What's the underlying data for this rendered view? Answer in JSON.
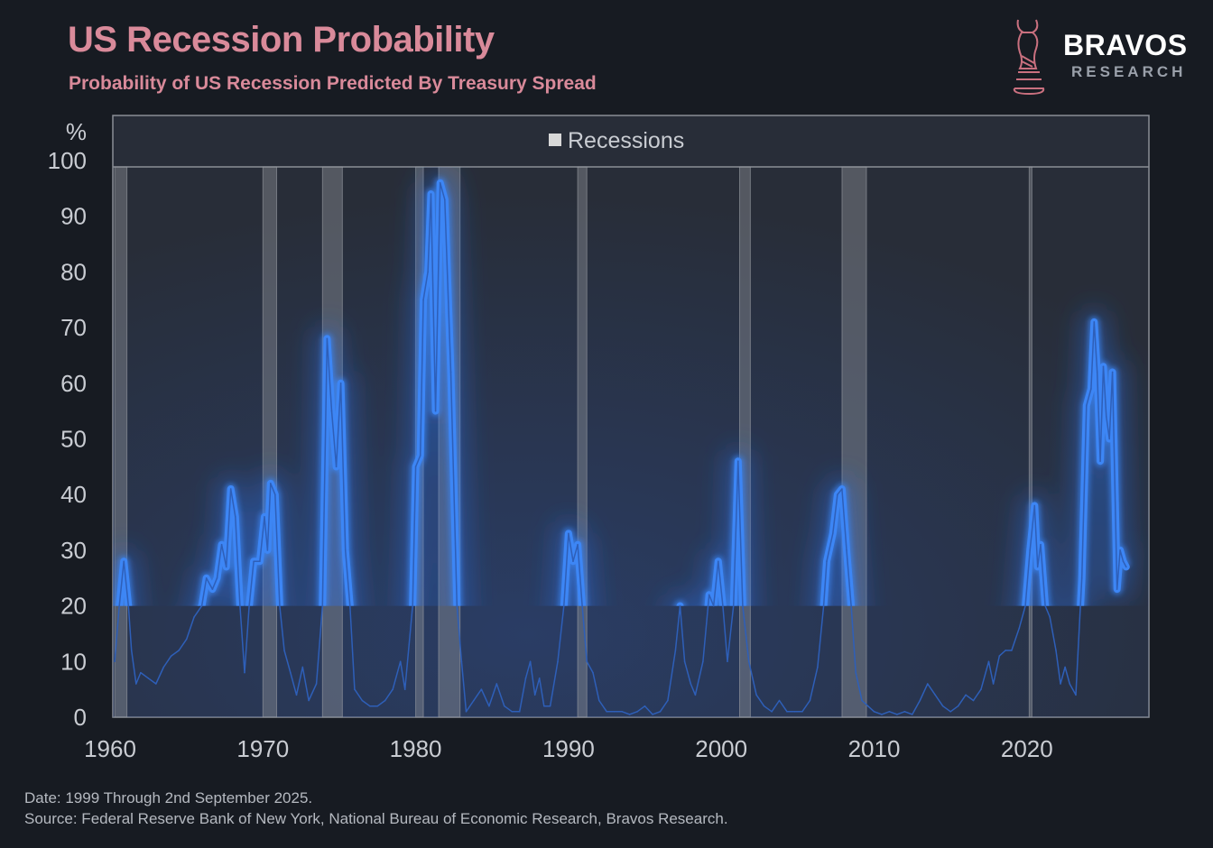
{
  "header": {
    "title": "US Recession Probability",
    "subtitle": "Probability of US Recession Predicted By Treasury Spread"
  },
  "logo": {
    "name": "BRAVOS",
    "sub": "RESEARCH",
    "icon": "bull-chess-knight-icon"
  },
  "footer": {
    "date_note": "Date: 1999 Through 2nd September 2025.",
    "source_note": "Source: Federal Reserve Bank of New York, National Bureau of Economic Research, Bravos Research."
  },
  "colors": {
    "title": "#d98a9a",
    "line": "#3d86f5",
    "background": "#171b22",
    "plot_bg": "#282d38",
    "recession_band": "#8a8d94"
  },
  "chart_data": {
    "type": "line",
    "title": "US Recession Probability",
    "subtitle": "Probability of US Recession Predicted By Treasury Spread",
    "ylabel": "%",
    "xlabel": "",
    "ylim": [
      0,
      100
    ],
    "xlim": [
      1960,
      2027.5
    ],
    "yticks": [
      0,
      10,
      20,
      30,
      40,
      50,
      60,
      70,
      80,
      90,
      100
    ],
    "xticks": [
      1960,
      1970,
      1980,
      1990,
      2000,
      2010,
      2020
    ],
    "grid": false,
    "legend": {
      "position": "top",
      "entries": [
        "Recessions"
      ]
    },
    "highlight_threshold": 20,
    "recessions": [
      [
        1960.3,
        1961.1
      ],
      [
        1970.0,
        1970.9
      ],
      [
        1973.9,
        1975.2
      ],
      [
        1980.0,
        1980.5
      ],
      [
        1981.5,
        1982.9
      ],
      [
        1990.6,
        1991.2
      ],
      [
        2001.2,
        2001.9
      ],
      [
        2007.9,
        2009.5
      ],
      [
        2020.15,
        2020.3
      ]
    ],
    "series": [
      {
        "x": [
          1960.3,
          1960.6,
          1960.9,
          1961.2,
          1961.4,
          1961.7,
          1962.0,
          1962.5,
          1963.0,
          1963.5,
          1964.0,
          1964.5,
          1965.0,
          1965.5,
          1966.0,
          1966.3,
          1966.7,
          1967.0,
          1967.3,
          1967.6,
          1967.9,
          1968.2,
          1968.5,
          1968.8,
          1969.1,
          1969.4,
          1969.8,
          1970.1,
          1970.3,
          1970.5,
          1970.8,
          1971.1,
          1971.4,
          1971.8,
          1972.2,
          1972.6,
          1973.0,
          1973.5,
          1973.9,
          1974.2,
          1974.5,
          1974.8,
          1975.1,
          1975.4,
          1975.7,
          1976.0,
          1976.5,
          1977.0,
          1977.5,
          1978.0,
          1978.5,
          1979.0,
          1979.3,
          1979.8,
          1980.0,
          1980.3,
          1980.5,
          1980.8,
          1981.0,
          1981.3,
          1981.6,
          1981.9,
          1982.3,
          1982.7,
          1983.0,
          1983.3,
          1983.8,
          1984.3,
          1984.8,
          1985.3,
          1985.8,
          1986.3,
          1986.8,
          1987.2,
          1987.5,
          1987.8,
          1988.1,
          1988.4,
          1988.8,
          1989.3,
          1989.7,
          1990.0,
          1990.3,
          1990.6,
          1990.9,
          1991.2,
          1991.6,
          1992.0,
          1992.5,
          1993.0,
          1993.5,
          1994.0,
          1994.5,
          1995.0,
          1995.5,
          1996.0,
          1996.5,
          1997.0,
          1997.3,
          1997.6,
          1998.0,
          1998.3,
          1998.8,
          1999.2,
          1999.5,
          1999.8,
          2000.1,
          2000.4,
          2000.8,
          2001.1,
          2001.4,
          2001.8,
          2002.3,
          2002.8,
          2003.3,
          2003.8,
          2004.3,
          2004.8,
          2005.3,
          2005.8,
          2006.3,
          2006.7,
          2006.9,
          2007.3,
          2007.6,
          2007.9,
          2008.2,
          2008.5,
          2008.8,
          2009.2,
          2009.6,
          2010.0,
          2010.5,
          2011.0,
          2011.5,
          2012.0,
          2012.5,
          2013.0,
          2013.5,
          2014.0,
          2014.5,
          2015.0,
          2015.5,
          2016.0,
          2016.5,
          2017.0,
          2017.5,
          2017.8,
          2018.2,
          2018.6,
          2019.0,
          2019.5,
          2019.9,
          2020.2,
          2020.5,
          2020.7,
          2020.9,
          2021.2,
          2021.5,
          2021.9,
          2022.2,
          2022.5,
          2022.8,
          2023.2,
          2023.5,
          2023.6,
          2023.9,
          2024.2,
          2024.4,
          2024.6,
          2024.8,
          2025.0,
          2025.2,
          2025.4,
          2025.6,
          2025.9,
          2026.1,
          2026.3,
          2026.5
        ],
        "y": [
          10,
          20,
          28,
          20,
          12,
          6,
          8,
          7,
          6,
          9,
          11,
          12,
          14,
          18,
          20,
          25,
          23,
          25,
          31,
          27,
          41,
          36,
          20,
          8,
          20,
          28,
          28,
          36,
          30,
          42,
          40,
          20,
          12,
          8,
          4,
          9,
          3,
          6,
          20,
          68,
          55,
          45,
          60,
          30,
          20,
          5,
          3,
          2,
          2,
          3,
          5,
          10,
          5,
          20,
          45,
          47,
          75,
          80,
          94,
          55,
          96,
          93,
          62,
          20,
          10,
          1,
          3,
          5,
          2,
          6,
          2,
          1,
          1,
          7,
          10,
          4,
          7,
          2,
          2,
          10,
          20,
          33,
          28,
          31,
          20,
          10,
          8,
          3,
          1,
          1,
          1,
          0.5,
          1,
          2,
          0.5,
          1,
          3,
          12,
          20,
          10,
          6,
          4,
          10,
          22,
          20,
          28,
          20,
          10,
          20,
          46,
          20,
          10,
          4,
          2,
          1,
          3,
          1,
          1,
          1,
          3,
          9,
          20,
          28,
          33,
          40,
          41,
          30,
          20,
          8,
          3,
          2,
          1,
          0.5,
          1,
          0.5,
          1,
          0.5,
          3,
          6,
          4,
          2,
          1,
          2,
          4,
          3,
          5,
          10,
          6,
          11,
          12,
          12,
          16,
          20,
          30,
          38,
          27,
          31,
          20,
          18,
          12,
          6,
          9,
          6,
          4,
          20,
          25,
          56,
          59,
          71,
          62,
          46,
          63,
          54,
          50,
          62,
          23,
          30,
          28,
          27
        ]
      }
    ]
  }
}
